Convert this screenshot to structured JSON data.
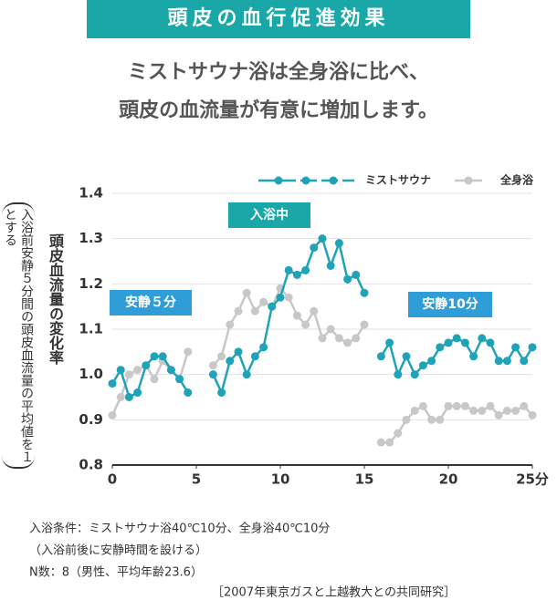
{
  "chart_data": {
    "type": "line",
    "title": "頭皮の血行促進効果",
    "subtitle": [
      "ミストサウナ浴は全身浴に比べ、",
      "頭皮の血流量が有意に増加します。"
    ],
    "ylabel": "頭皮血流量の変化率",
    "ylabel_note": "入浴前安静５分間の頭皮血流量の平均値を１とする",
    "x": [
      0,
      0.5,
      1,
      1.5,
      2,
      2.5,
      3,
      3.5,
      4,
      4.5,
      null,
      6,
      6.5,
      7,
      7.5,
      8,
      8.5,
      9,
      9.5,
      10,
      10.5,
      11,
      11.5,
      12,
      12.5,
      13,
      13.5,
      14,
      14.5,
      15,
      null,
      16,
      16.5,
      17,
      17.5,
      18,
      18.5,
      19,
      19.5,
      20,
      20.5,
      21,
      21.5,
      22,
      22.5,
      23,
      23.5,
      24,
      24.5,
      25
    ],
    "series": [
      {
        "name": "ミストサウナ",
        "color": "#1fa3b9",
        "values": [
          0.98,
          1.01,
          0.95,
          0.96,
          1.02,
          1.04,
          1.04,
          1.01,
          0.99,
          0.96,
          null,
          1.0,
          0.96,
          1.03,
          1.05,
          1.0,
          1.04,
          1.06,
          1.15,
          1.17,
          1.23,
          1.22,
          1.23,
          1.28,
          1.3,
          1.24,
          1.29,
          1.21,
          1.22,
          1.18,
          null,
          1.04,
          1.07,
          1.0,
          1.04,
          1.0,
          1.02,
          1.03,
          1.06,
          1.07,
          1.08,
          1.07,
          1.04,
          1.08,
          1.07,
          1.03,
          1.03,
          1.06,
          1.03,
          1.06
        ]
      },
      {
        "name": "全身浴",
        "color": "#c8c8c8",
        "values": [
          0.91,
          0.95,
          1.0,
          1.01,
          1.02,
          0.99,
          1.03,
          1.01,
          0.99,
          1.05,
          null,
          1.02,
          1.04,
          1.11,
          1.14,
          1.18,
          1.14,
          1.16,
          1.15,
          1.19,
          1.17,
          1.13,
          1.11,
          1.14,
          1.08,
          1.1,
          1.08,
          1.07,
          1.08,
          1.11,
          null,
          0.85,
          0.85,
          0.87,
          0.9,
          0.92,
          0.93,
          0.9,
          0.9,
          0.93,
          0.93,
          0.93,
          0.92,
          0.92,
          0.93,
          0.91,
          0.92,
          0.92,
          0.93,
          0.91
        ]
      }
    ],
    "xlim": [
      0,
      25
    ],
    "xticks": [
      0,
      5,
      10,
      15,
      20,
      {
        "value": 25,
        "label": "25分"
      }
    ],
    "ylim": [
      0.8,
      1.4
    ],
    "yticks": [
      0.8,
      0.9,
      {
        "value": 1,
        "label": "1.0"
      },
      1.1,
      1.2,
      1.3,
      1.4
    ],
    "grid": true,
    "annotations": [
      {
        "text": "安静５分",
        "color": "#2f9ed8"
      },
      {
        "text": "入浴中",
        "color": "#19a7a8"
      },
      {
        "text": "安静10分",
        "color": "#2f9ed8"
      }
    ],
    "notes": [
      "入浴条件：ミストサウナ浴40℃10分、全身浴40℃10分",
      "（入浴前後に安静時間を設ける）",
      "N数：8（男性、平均年齢23.6）"
    ],
    "source": "［2007年東京ガスと上越教大との共同研究］"
  }
}
